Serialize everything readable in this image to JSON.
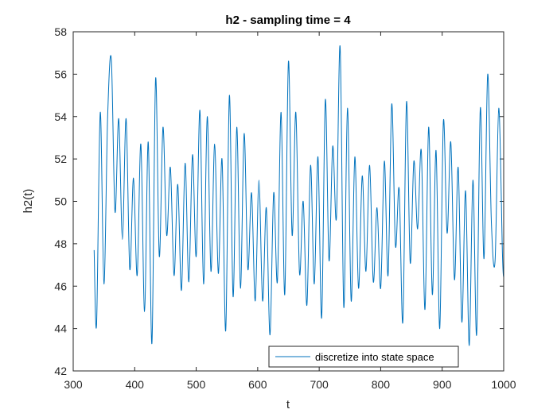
{
  "chart_data": {
    "type": "line",
    "title": "h2 - sampling time = 4",
    "xlabel": "t",
    "ylabel": "h2(t)",
    "xlim": [
      300,
      1000
    ],
    "ylim": [
      42,
      58
    ],
    "xticks": [
      "300",
      "400",
      "500",
      "600",
      "700",
      "800",
      "900",
      "1000"
    ],
    "yticks": [
      "42",
      "44",
      "46",
      "48",
      "50",
      "52",
      "54",
      "56",
      "58"
    ],
    "grid": false,
    "legend_position": "bottom-right",
    "series": [
      {
        "name": "discretize into state space",
        "color": "#0072BD",
        "x": [
          334,
          338,
          344,
          350,
          356,
          362,
          368,
          374,
          380,
          386,
          392,
          398,
          404,
          410,
          416,
          422,
          428,
          434,
          440,
          446,
          452,
          458,
          464,
          470,
          476,
          482,
          488,
          494,
          500,
          506,
          512,
          518,
          524,
          530,
          536,
          542,
          548,
          554,
          560,
          566,
          572,
          578,
          584,
          590,
          596,
          602,
          608,
          614,
          620,
          626,
          632,
          638,
          644,
          650,
          656,
          662,
          668,
          674,
          680,
          686,
          692,
          698,
          704,
          710,
          716,
          722,
          728,
          734,
          740,
          746,
          752,
          758,
          764,
          770,
          776,
          782,
          788,
          794,
          800,
          806,
          812,
          818,
          824,
          830,
          836,
          842,
          848,
          854,
          860,
          866,
          872,
          878,
          884,
          890,
          896,
          902,
          908,
          914,
          920,
          926,
          932,
          938,
          944,
          950,
          956,
          962,
          968,
          974,
          980,
          986,
          992,
          998,
          1000
        ],
        "y": [
          47.7,
          44.2,
          54.2,
          46.1,
          54.0,
          56.7,
          49.5,
          53.9,
          48.2,
          53.9,
          46.8,
          51.1,
          46.5,
          52.7,
          44.8,
          52.8,
          43.3,
          55.8,
          47.4,
          53.5,
          48.4,
          51.6,
          46.5,
          50.8,
          45.8,
          51.8,
          46.2,
          52.2,
          47.4,
          54.3,
          46.1,
          54.0,
          46.7,
          52.7,
          46.6,
          52.0,
          43.9,
          55.0,
          45.5,
          53.5,
          45.9,
          53.2,
          46.8,
          50.4,
          45.3,
          51.0,
          45.3,
          49.7,
          43.7,
          50.4,
          46.2,
          54.2,
          45.6,
          56.6,
          48.4,
          54.2,
          46.6,
          50.0,
          45.1,
          51.7,
          46.1,
          52.1,
          44.5,
          54.8,
          47.2,
          52.6,
          49.2,
          57.3,
          45.0,
          54.4,
          45.3,
          52.1,
          45.9,
          51.2,
          46.7,
          51.7,
          46.2,
          49.7,
          45.9,
          51.9,
          46.5,
          54.6,
          47.9,
          50.6,
          44.3,
          54.7,
          47.1,
          51.9,
          48.7,
          52.4,
          44.9,
          53.5,
          45.6,
          52.4,
          44.0,
          53.8,
          48.5,
          52.8,
          46.3,
          51.6,
          44.3,
          50.5,
          43.2,
          51.0,
          43.7,
          54.4,
          47.3,
          56.0,
          49.0,
          47.2,
          54.4,
          47.5,
          46.4
        ]
      }
    ]
  }
}
